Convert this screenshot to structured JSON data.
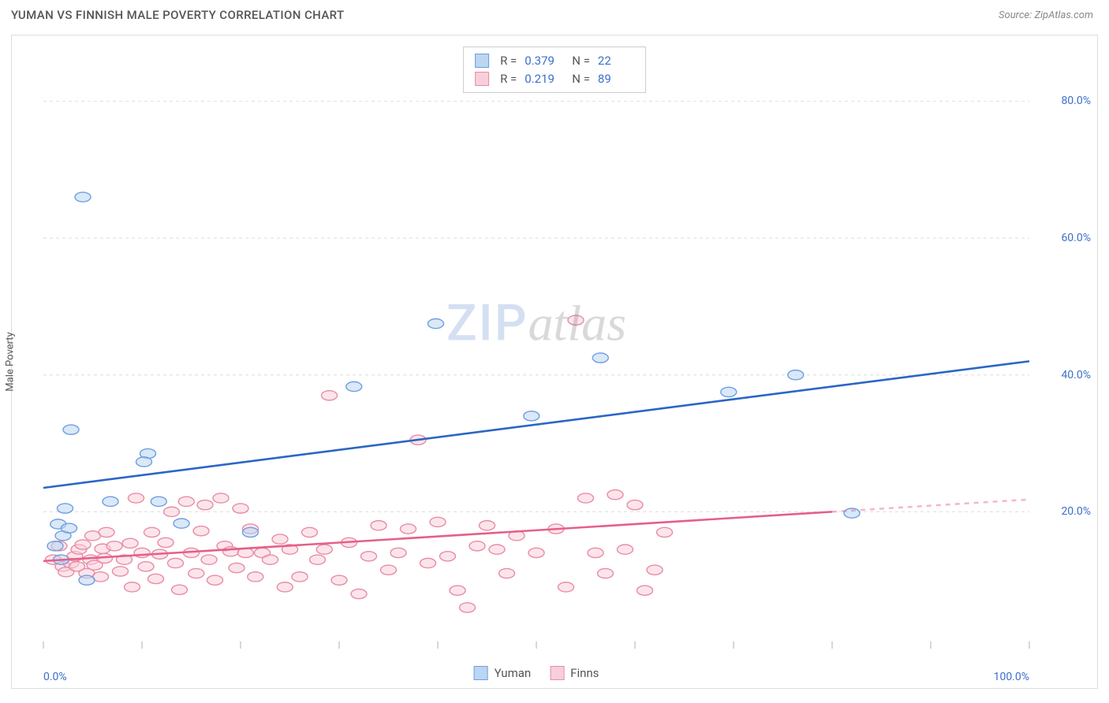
{
  "header": {
    "title": "YUMAN VS FINNISH MALE POVERTY CORRELATION CHART",
    "source_prefix": "Source: ",
    "source_name": "ZipAtlas.com"
  },
  "axes": {
    "y_label": "Male Poverty",
    "x_min": 0,
    "x_max": 100,
    "y_min": 0,
    "y_max": 88,
    "x_ticks": [
      0,
      10,
      20,
      30,
      40,
      50,
      60,
      70,
      80,
      90,
      100
    ],
    "y_gridlines": [
      20,
      40,
      60,
      80
    ],
    "y_tick_labels": {
      "20": "20.0%",
      "40": "40.0%",
      "60": "60.0%",
      "80": "80.0%"
    },
    "x_tick_labels": {
      "0": "0.0%",
      "100": "100.0%"
    }
  },
  "watermark": {
    "zip": "ZIP",
    "atlas": "atlas"
  },
  "colors": {
    "grid": "#e3e3e3",
    "axis": "#cccccc",
    "tick": "#bdbdbd",
    "yuman_fill": "#bcd5f0",
    "yuman_stroke": "#6d9fe0",
    "yuman_line": "#2b66c4",
    "finns_fill": "#f7cfda",
    "finns_stroke": "#e98ba5",
    "finns_line": "#e55f87",
    "stat_value": "#3b6fc9",
    "stat_label": "#555555"
  },
  "stats": {
    "yuman": {
      "r": "0.379",
      "n": "22"
    },
    "finns": {
      "r": "0.219",
      "n": "89"
    }
  },
  "legend": {
    "yuman": "Yuman",
    "finns": "Finns",
    "r_label": "R =",
    "n_label": "N ="
  },
  "marker_radius": 8,
  "marker_opacity": 0.55,
  "trend_width": 2.6,
  "series": {
    "yuman": {
      "points": [
        [
          1.2,
          15.0
        ],
        [
          1.5,
          18.2
        ],
        [
          1.8,
          13.0
        ],
        [
          2.0,
          16.5
        ],
        [
          2.2,
          20.5
        ],
        [
          2.6,
          17.6
        ],
        [
          2.8,
          32.0
        ],
        [
          4.0,
          66.0
        ],
        [
          4.4,
          10.0
        ],
        [
          6.8,
          21.5
        ],
        [
          10.6,
          28.5
        ],
        [
          10.2,
          27.3
        ],
        [
          11.7,
          21.5
        ],
        [
          14.0,
          18.3
        ],
        [
          21.0,
          17.0
        ],
        [
          31.5,
          38.3
        ],
        [
          39.8,
          47.5
        ],
        [
          49.5,
          34.0
        ],
        [
          56.5,
          42.5
        ],
        [
          69.5,
          37.5
        ],
        [
          76.3,
          40.0
        ],
        [
          82.0,
          19.8
        ]
      ],
      "trend": {
        "x1": 0,
        "y1": 23.5,
        "x2": 100,
        "y2": 42.0
      }
    },
    "finns": {
      "points": [
        [
          1.0,
          13.0
        ],
        [
          1.6,
          15.0
        ],
        [
          2.0,
          12.0
        ],
        [
          2.3,
          11.2
        ],
        [
          2.8,
          12.5
        ],
        [
          3.2,
          13.5
        ],
        [
          3.4,
          12.0
        ],
        [
          3.6,
          14.5
        ],
        [
          4.0,
          15.2
        ],
        [
          4.4,
          11.0
        ],
        [
          4.8,
          13.0
        ],
        [
          5.0,
          16.5
        ],
        [
          5.2,
          12.2
        ],
        [
          5.8,
          10.5
        ],
        [
          6.0,
          14.6
        ],
        [
          6.2,
          13.2
        ],
        [
          6.4,
          17.0
        ],
        [
          7.2,
          15.0
        ],
        [
          7.8,
          11.3
        ],
        [
          8.2,
          13.0
        ],
        [
          8.8,
          15.4
        ],
        [
          9.0,
          9.0
        ],
        [
          9.4,
          22.0
        ],
        [
          10.0,
          14.0
        ],
        [
          10.4,
          12.0
        ],
        [
          11.0,
          17.0
        ],
        [
          11.4,
          10.2
        ],
        [
          11.8,
          13.8
        ],
        [
          12.4,
          15.5
        ],
        [
          13.0,
          20.0
        ],
        [
          13.4,
          12.5
        ],
        [
          13.8,
          8.6
        ],
        [
          14.5,
          21.5
        ],
        [
          15.0,
          14.0
        ],
        [
          15.5,
          11.0
        ],
        [
          16.0,
          17.2
        ],
        [
          16.4,
          21.0
        ],
        [
          16.8,
          13.0
        ],
        [
          17.4,
          10.0
        ],
        [
          18.0,
          22.0
        ],
        [
          18.4,
          15.0
        ],
        [
          19.0,
          14.2
        ],
        [
          19.6,
          11.8
        ],
        [
          20.0,
          20.5
        ],
        [
          20.5,
          14.0
        ],
        [
          21.0,
          17.5
        ],
        [
          21.5,
          10.5
        ],
        [
          22.2,
          14.0
        ],
        [
          23.0,
          13.0
        ],
        [
          24.0,
          16.0
        ],
        [
          24.5,
          9.0
        ],
        [
          25.0,
          14.5
        ],
        [
          26.0,
          10.5
        ],
        [
          27.0,
          17.0
        ],
        [
          27.8,
          13.0
        ],
        [
          28.5,
          14.5
        ],
        [
          29.0,
          37.0
        ],
        [
          30.0,
          10.0
        ],
        [
          31.0,
          15.5
        ],
        [
          32.0,
          8.0
        ],
        [
          33.0,
          13.5
        ],
        [
          34.0,
          18.0
        ],
        [
          35.0,
          11.5
        ],
        [
          36.0,
          14.0
        ],
        [
          37.0,
          17.5
        ],
        [
          38.0,
          30.5
        ],
        [
          39.0,
          12.5
        ],
        [
          40.0,
          18.5
        ],
        [
          41.0,
          13.5
        ],
        [
          42.0,
          8.5
        ],
        [
          43.0,
          6.0
        ],
        [
          44.0,
          15.0
        ],
        [
          45.0,
          18.0
        ],
        [
          46.0,
          14.5
        ],
        [
          47.0,
          11.0
        ],
        [
          48.0,
          16.5
        ],
        [
          50.0,
          14.0
        ],
        [
          52.0,
          17.5
        ],
        [
          53.0,
          9.0
        ],
        [
          54.0,
          48.0
        ],
        [
          55.0,
          22.0
        ],
        [
          56.0,
          14.0
        ],
        [
          57.0,
          11.0
        ],
        [
          58.0,
          22.5
        ],
        [
          59.0,
          14.5
        ],
        [
          60.0,
          21.0
        ],
        [
          61.0,
          8.5
        ],
        [
          62.0,
          11.5
        ],
        [
          63.0,
          17.0
        ]
      ],
      "trend_solid": {
        "x1": 0,
        "y1": 12.8,
        "x2": 80,
        "y2": 20.0
      },
      "trend_dashed": {
        "x1": 80,
        "y1": 20.0,
        "x2": 100,
        "y2": 21.8
      }
    }
  }
}
